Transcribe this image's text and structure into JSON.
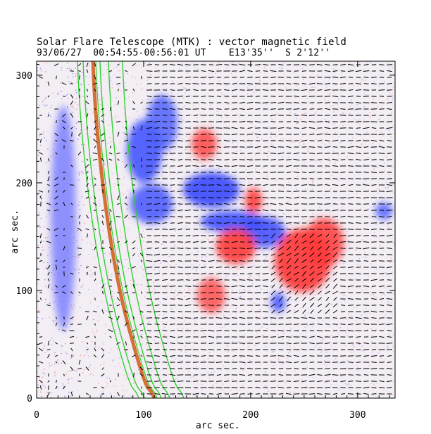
{
  "title_line1": "Solar Flare Telescope (MTK) : vector magnetic field",
  "title_line2": "93/06/27  00:54:55-00:56:01 UT    E13'35''  S 2'12''",
  "xlabel": "arc sec.",
  "ylabel": "arc sec.",
  "axes": {
    "xlim": [
      0,
      335
    ],
    "ylim": [
      0,
      313
    ],
    "xticks": [
      0,
      100,
      200,
      300
    ],
    "yticks": [
      0,
      100,
      200,
      300
    ]
  },
  "colors": {
    "positive": "#ff4040",
    "negative": "#4040ff",
    "contour": "#30d030",
    "limb": "#d06020",
    "vector": "#000000"
  }
}
